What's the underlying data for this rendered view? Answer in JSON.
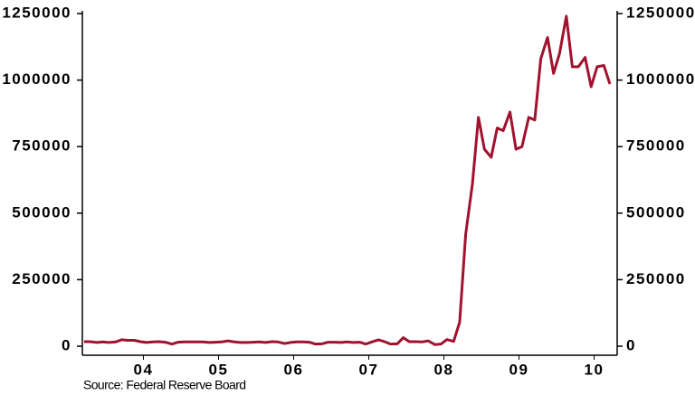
{
  "chart_data": {
    "type": "line",
    "source": "Source:  Federal Reserve Board",
    "x": [
      2003.71,
      2003.79,
      2003.88,
      2003.96,
      2004.04,
      2004.13,
      2004.21,
      2004.29,
      2004.38,
      2004.46,
      2004.54,
      2004.63,
      2004.71,
      2004.79,
      2004.88,
      2004.96,
      2005.04,
      2005.13,
      2005.21,
      2005.29,
      2005.38,
      2005.46,
      2005.54,
      2005.63,
      2005.71,
      2005.79,
      2005.88,
      2005.96,
      2006.04,
      2006.13,
      2006.21,
      2006.29,
      2006.38,
      2006.46,
      2006.54,
      2006.63,
      2006.71,
      2006.79,
      2006.88,
      2006.96,
      2007.04,
      2007.13,
      2007.21,
      2007.29,
      2007.38,
      2007.46,
      2007.54,
      2007.63,
      2007.71,
      2007.79,
      2007.88,
      2007.96,
      2008.04,
      2008.13,
      2008.21,
      2008.29,
      2008.38,
      2008.46,
      2008.54,
      2008.63,
      2008.71,
      2008.79,
      2008.88,
      2008.96,
      2009.04,
      2009.13,
      2009.21,
      2009.29,
      2009.38,
      2009.46,
      2009.54,
      2009.63,
      2009.71,
      2009.79,
      2009.88,
      2009.96,
      2010.04,
      2010.13,
      2010.21,
      2010.29,
      2010.38,
      2010.46,
      2010.54,
      2010.63,
      2010.71
    ],
    "series": [
      {
        "color": "#a0122e",
        "values": [
          17000,
          17000,
          14000,
          16000,
          14000,
          16000,
          24000,
          22000,
          22000,
          17000,
          14000,
          16000,
          17000,
          15000,
          8000,
          15000,
          16000,
          16000,
          16000,
          16000,
          14000,
          15000,
          16000,
          20000,
          16000,
          14000,
          14000,
          15000,
          16000,
          14000,
          17000,
          16000,
          10000,
          14000,
          16000,
          16000,
          15000,
          8000,
          9000,
          15000,
          15000,
          14000,
          16000,
          14000,
          15000,
          8000,
          16000,
          24000,
          17000,
          8000,
          9000,
          32000,
          17000,
          17000,
          16000,
          20000,
          6000,
          8000,
          25000,
          18000,
          90000,
          420000,
          610000,
          860000,
          740000,
          710000,
          820000,
          810000,
          880000,
          740000,
          750000,
          860000,
          850000,
          1080000,
          1160000,
          1025000,
          1100000,
          1240000,
          1050000,
          1050000,
          1085000,
          975000,
          1050000,
          1055000,
          985000
        ]
      }
    ],
    "xlim": [
      2003.687,
      2010.807
    ],
    "xticks": [
      {
        "value": 2004.5,
        "label": "04"
      },
      {
        "value": 2005.5,
        "label": "05"
      },
      {
        "value": 2006.5,
        "label": "06"
      },
      {
        "value": 2007.5,
        "label": "07"
      },
      {
        "value": 2008.5,
        "label": "08"
      },
      {
        "value": 2009.5,
        "label": "09"
      },
      {
        "value": 2010.5,
        "label": "10"
      }
    ],
    "ylim": [
      0,
      1250000
    ],
    "yticks": [
      0,
      250000,
      500000,
      750000,
      1000000,
      1250000
    ],
    "y2lim": [
      0,
      1250000
    ],
    "y2ticks": [
      0,
      250000,
      500000,
      750000,
      1000000,
      1250000
    ]
  }
}
